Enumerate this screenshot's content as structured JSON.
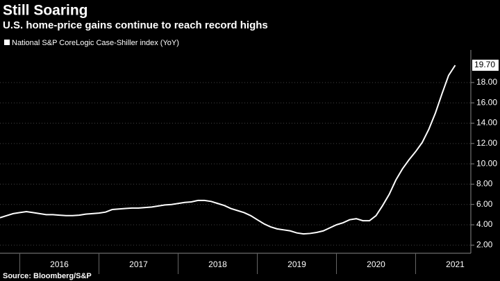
{
  "chart_data": {
    "type": "line",
    "title": "Still Soaring",
    "subtitle": "U.S. home-price gains continue to reach record highs",
    "source": "Source: Bloomberg/S&P",
    "categories": [
      null,
      null,
      null,
      null,
      null,
      null,
      null,
      null,
      null,
      "2016",
      null,
      null,
      null,
      null,
      null,
      null,
      null,
      null,
      null,
      null,
      null,
      "2017",
      null,
      null,
      null,
      null,
      null,
      null,
      null,
      null,
      null,
      null,
      null,
      "2018",
      null,
      null,
      null,
      null,
      null,
      null,
      null,
      null,
      null,
      null,
      null,
      "2019",
      null,
      null,
      null,
      null,
      null,
      null,
      null,
      null,
      null,
      null,
      null,
      "2020",
      null,
      null,
      null,
      null,
      null,
      null,
      null,
      null,
      null,
      null,
      null,
      "2021"
    ],
    "series": [
      {
        "name": "National S&P CoreLogic Case-Shiller index (YoY)",
        "color": "#ffffff",
        "values": [
          4.7,
          4.9,
          5.1,
          5.2,
          5.3,
          5.2,
          5.1,
          5.0,
          5.0,
          4.95,
          4.9,
          4.9,
          4.95,
          5.05,
          5.1,
          5.15,
          5.25,
          5.5,
          5.55,
          5.6,
          5.65,
          5.65,
          5.7,
          5.75,
          5.85,
          5.95,
          6.0,
          6.1,
          6.2,
          6.25,
          6.4,
          6.4,
          6.3,
          6.1,
          5.9,
          5.6,
          5.4,
          5.2,
          4.9,
          4.5,
          4.1,
          3.8,
          3.6,
          3.5,
          3.4,
          3.2,
          3.1,
          3.15,
          3.25,
          3.4,
          3.7,
          4.0,
          4.2,
          4.5,
          4.6,
          4.4,
          4.4,
          4.9,
          5.9,
          7.0,
          8.4,
          9.5,
          10.4,
          11.2,
          12.1,
          13.4,
          15.0,
          16.9,
          18.7,
          19.7
        ],
        "value_labels": [
          null,
          null,
          null,
          null,
          null,
          null,
          null,
          null,
          null,
          null,
          null,
          null,
          null,
          null,
          null,
          null,
          null,
          null,
          null,
          null,
          null,
          null,
          null,
          null,
          null,
          null,
          null,
          null,
          null,
          null,
          null,
          null,
          null,
          null,
          null,
          null,
          null,
          null,
          null,
          null,
          null,
          null,
          null,
          null,
          null,
          null,
          null,
          null,
          null,
          null,
          null,
          null,
          null,
          null,
          null,
          null,
          null,
          null,
          null,
          null,
          null,
          null,
          null,
          null,
          null,
          null,
          null,
          null,
          null,
          "19.70"
        ]
      }
    ],
    "ylim": [
      1.2,
      21
    ],
    "yticks": [
      {
        "value": 2,
        "label": "2.00"
      },
      {
        "value": 4,
        "label": "4.00"
      },
      {
        "value": 6,
        "label": "6.00"
      },
      {
        "value": 8,
        "label": "8.00"
      },
      {
        "value": 10,
        "label": "10.00"
      },
      {
        "value": 12,
        "label": "12.00"
      },
      {
        "value": 14,
        "label": "14.00"
      },
      {
        "value": 16,
        "label": "16.00"
      },
      {
        "value": 18,
        "label": "18.00"
      }
    ],
    "grid": true
  }
}
